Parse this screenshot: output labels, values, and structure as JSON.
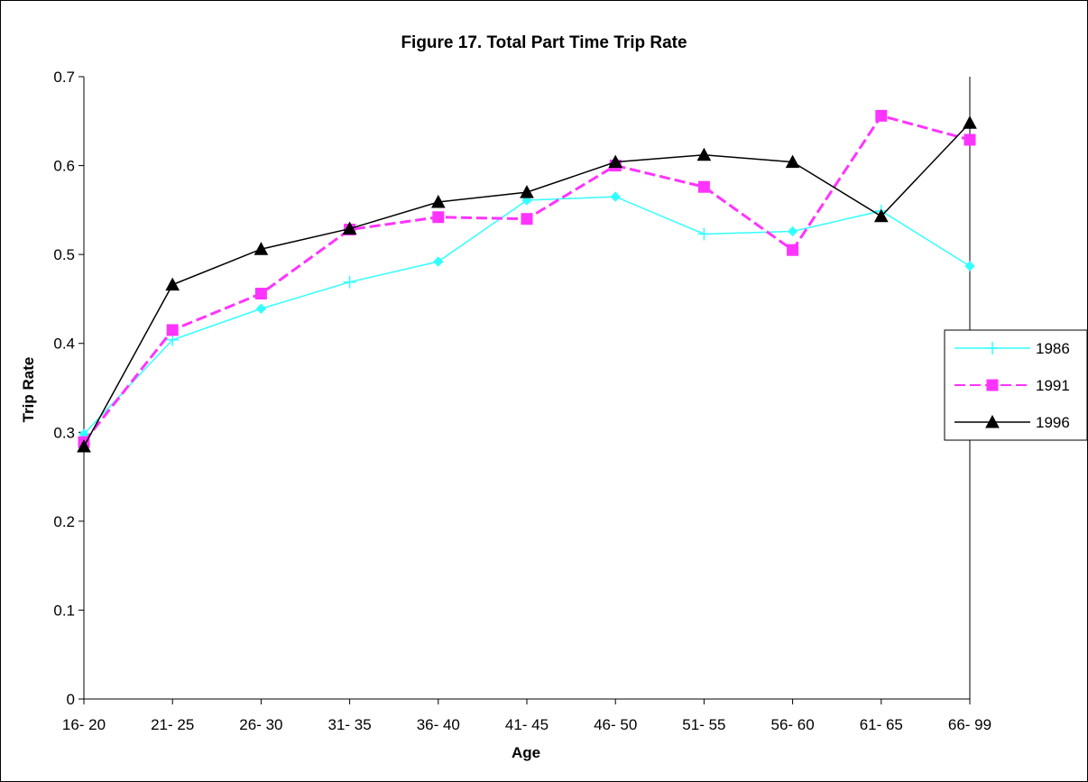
{
  "chart_data": {
    "type": "line",
    "title": "Figure 17. Total Part Time Trip Rate",
    "xlabel": "Age",
    "ylabel": "Trip Rate",
    "categories": [
      "16- 20",
      "21- 25",
      "26- 30",
      "31- 35",
      "36- 40",
      "41- 45",
      "46- 50",
      "51- 55",
      "56- 60",
      "61- 65",
      "66- 99"
    ],
    "ylim": [
      0,
      0.7
    ],
    "yticks": [
      "0",
      "0.1",
      "0.2",
      "0.3",
      "0.4",
      "0.5",
      "0.6",
      "0.7"
    ],
    "grid": false,
    "legend_position": "right",
    "series": [
      {
        "name": "1986",
        "color": "#33ffff",
        "marker": "plus-diamond",
        "dash": "solid",
        "values": [
          0.298,
          0.404,
          0.439,
          0.469,
          0.492,
          0.561,
          0.565,
          0.523,
          0.526,
          0.549,
          0.487
        ]
      },
      {
        "name": "1991",
        "color": "#ff33ff",
        "marker": "square",
        "dash": "dashed",
        "values": [
          0.289,
          0.415,
          0.456,
          0.528,
          0.542,
          0.54,
          0.6,
          0.576,
          0.505,
          0.656,
          0.629
        ]
      },
      {
        "name": "1996",
        "color": "#000000",
        "marker": "triangle",
        "dash": "solid",
        "values": [
          0.284,
          0.466,
          0.506,
          0.529,
          0.559,
          0.57,
          0.604,
          0.612,
          0.604,
          0.543,
          0.648
        ]
      }
    ]
  }
}
